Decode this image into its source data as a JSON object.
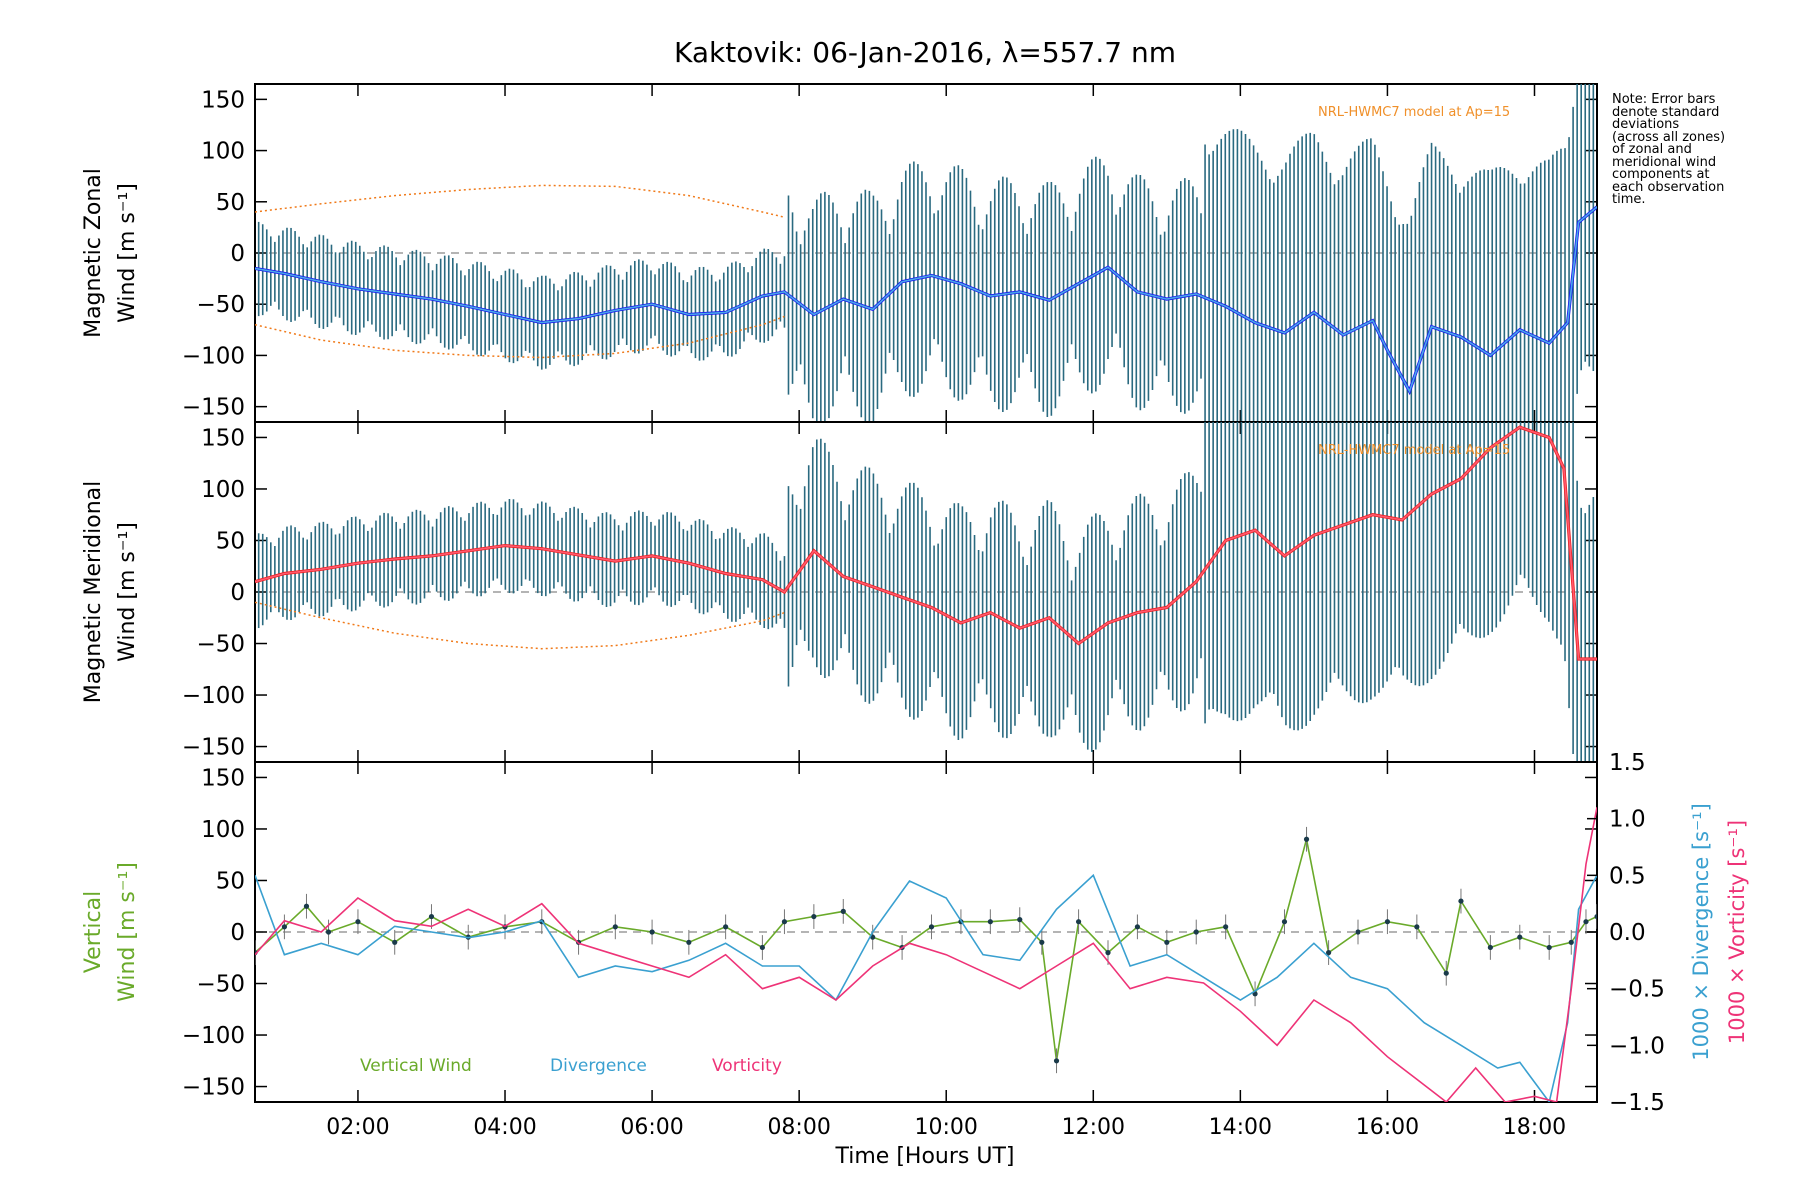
{
  "chart_data": {
    "type": "line",
    "title": "Kaktovik: 06-Jan-2016, λ=557.7 nm",
    "xlabel": "Time [Hours UT]",
    "x_ticks": [
      "02:00",
      "04:00",
      "06:00",
      "08:00",
      "10:00",
      "12:00",
      "14:00",
      "16:00",
      "18:00"
    ],
    "x_tick_hours": [
      2,
      4,
      6,
      8,
      10,
      12,
      14,
      16,
      18
    ],
    "xlim_hours": [
      0.6,
      18.85
    ],
    "note": "Note: Error bars\ndenote standard\ndeviations\n(across all zones)\nof zonal and\nmeridional wind\ncomponents at\neach observation\ntime.",
    "panels": [
      {
        "id": "zonal",
        "ylabel_line1": "Magnetic Zonal",
        "ylabel_line2": "Wind [m s⁻¹]",
        "ylim": [
          -165,
          165
        ],
        "yticks": [
          -150,
          -100,
          -50,
          0,
          50,
          100,
          150
        ],
        "model_label": "NRL-HWMC7 model at Ap=15",
        "model_upper": {
          "x": [
            0.6,
            1.5,
            2.5,
            3.5,
            4.5,
            5.5,
            6.5,
            7.5,
            7.8
          ],
          "y": [
            40,
            48,
            56,
            62,
            66,
            65,
            56,
            40,
            35
          ]
        },
        "model_lower": {
          "x": [
            0.6,
            1.5,
            2.5,
            3.5,
            4.5,
            5.5,
            6.5,
            7.5,
            7.8
          ],
          "y": [
            -70,
            -85,
            -95,
            -100,
            -102,
            -98,
            -88,
            -70,
            -62
          ]
        },
        "series": [
          {
            "color": "#1a1aee",
            "x": [
              0.6,
              1.0,
              1.5,
              2.0,
              2.5,
              3.0,
              3.5,
              4.0,
              4.5,
              5.0,
              5.5,
              6.0,
              6.5,
              7.0,
              7.5,
              7.8,
              8.2,
              8.6,
              9.0,
              9.4,
              9.8,
              10.2,
              10.6,
              11.0,
              11.4,
              11.8,
              12.2,
              12.6,
              13.0,
              13.4,
              13.8,
              14.2,
              14.6,
              15.0,
              15.4,
              15.8,
              16.0,
              16.3,
              16.6,
              17.0,
              17.4,
              17.8,
              18.2,
              18.45,
              18.6,
              18.85
            ],
            "y": [
              -15,
              -20,
              -28,
              -35,
              -40,
              -45,
              -52,
              -60,
              -68,
              -64,
              -56,
              -50,
              -60,
              -58,
              -42,
              -38,
              -60,
              -45,
              -55,
              -28,
              -22,
              -30,
              -42,
              -38,
              -46,
              -30,
              -14,
              -38,
              -45,
              -40,
              -52,
              -68,
              -78,
              -58,
              -80,
              -66,
              -95,
              -135,
              -72,
              -82,
              -100,
              -75,
              -88,
              -68,
              30,
              45
            ]
          }
        ],
        "error_bar_color": "#2a6a80"
      },
      {
        "id": "meridional",
        "ylabel_line1": "Magnetic Meridional",
        "ylabel_line2": "Wind [m s⁻¹]",
        "ylim": [
          -165,
          165
        ],
        "yticks": [
          -150,
          -100,
          -50,
          0,
          50,
          100,
          150
        ],
        "model_label": "NRL-HWMC7 model at Ap=15",
        "model_lower": {
          "x": [
            0.6,
            1.5,
            2.5,
            3.5,
            4.5,
            5.5,
            6.5,
            7.5,
            7.8
          ],
          "y": [
            -10,
            -25,
            -40,
            -50,
            -55,
            -52,
            -42,
            -28,
            -20
          ]
        },
        "series": [
          {
            "color": "#ee2222",
            "x": [
              0.6,
              1.0,
              1.5,
              2.0,
              2.5,
              3.0,
              3.5,
              4.0,
              4.5,
              5.0,
              5.5,
              6.0,
              6.5,
              7.0,
              7.5,
              7.8,
              8.2,
              8.6,
              9.0,
              9.4,
              9.8,
              10.2,
              10.6,
              11.0,
              11.4,
              11.8,
              12.2,
              12.6,
              13.0,
              13.4,
              13.8,
              14.2,
              14.6,
              15.0,
              15.4,
              15.8,
              16.2,
              16.6,
              17.0,
              17.4,
              17.8,
              18.2,
              18.4,
              18.6,
              18.85
            ],
            "y": [
              10,
              18,
              22,
              28,
              32,
              35,
              40,
              45,
              42,
              36,
              30,
              35,
              28,
              18,
              12,
              0,
              40,
              15,
              5,
              -5,
              -15,
              -30,
              -20,
              -35,
              -25,
              -50,
              -30,
              -20,
              -15,
              10,
              50,
              60,
              35,
              55,
              65,
              75,
              70,
              95,
              110,
              140,
              160,
              150,
              120,
              -65,
              -65
            ]
          }
        ],
        "error_bar_color": "#2a6a80"
      },
      {
        "id": "vertical",
        "ylabel_line1": "Vertical",
        "ylabel_line2": "Wind [m s⁻¹]",
        "ylim": [
          -165,
          165
        ],
        "yticks": [
          -150,
          -100,
          -50,
          0,
          50,
          100,
          150
        ],
        "right_axis_1_label": "1000 × Divergence [s⁻¹]",
        "right_axis_2_label": "1000 × Vorticity [s⁻¹]",
        "right_ylim": [
          -1.5,
          1.5
        ],
        "right_yticks": [
          "-1.5",
          "-1.0",
          "-0.5",
          "0.0",
          "0.5",
          "1.0",
          "1.5"
        ],
        "right_ytick_values": [
          -1.5,
          -1.0,
          -0.5,
          0.0,
          0.5,
          1.0,
          1.5
        ],
        "legend": [
          {
            "name": "Vertical Wind",
            "color": "#6aaa2a"
          },
          {
            "name": "Divergence",
            "color": "#3aa0d0"
          },
          {
            "name": "Vorticity",
            "color": "#ee3377"
          }
        ],
        "series": [
          {
            "name": "Vertical Wind",
            "color": "#6aaa2a",
            "axis": "left",
            "x": [
              0.6,
              1.0,
              1.3,
              1.6,
              2.0,
              2.5,
              3.0,
              3.5,
              4.0,
              4.5,
              5.0,
              5.5,
              6.0,
              6.5,
              7.0,
              7.5,
              7.8,
              8.2,
              8.6,
              9.0,
              9.4,
              9.8,
              10.2,
              10.6,
              11.0,
              11.3,
              11.5,
              11.8,
              12.2,
              12.6,
              13.0,
              13.4,
              13.8,
              14.2,
              14.6,
              14.9,
              15.2,
              15.6,
              16.0,
              16.4,
              16.8,
              17.0,
              17.4,
              17.8,
              18.2,
              18.5,
              18.7,
              18.85
            ],
            "y": [
              -20,
              5,
              25,
              0,
              10,
              -10,
              15,
              -5,
              5,
              10,
              -10,
              5,
              0,
              -10,
              5,
              -15,
              10,
              15,
              20,
              -5,
              -15,
              5,
              10,
              10,
              12,
              -10,
              -125,
              10,
              -20,
              5,
              -10,
              0,
              5,
              -60,
              10,
              90,
              -20,
              0,
              10,
              5,
              -40,
              30,
              -15,
              -5,
              -15,
              -10,
              10,
              15
            ]
          },
          {
            "name": "Divergence",
            "color": "#3aa0d0",
            "axis": "right",
            "x": [
              0.6,
              1.0,
              1.5,
              2.0,
              2.5,
              3.0,
              3.5,
              4.0,
              4.5,
              5.0,
              5.5,
              6.0,
              6.5,
              7.0,
              7.5,
              8.0,
              8.5,
              9.0,
              9.5,
              10.0,
              10.5,
              11.0,
              11.5,
              12.0,
              12.5,
              13.0,
              13.5,
              14.0,
              14.5,
              15.0,
              15.5,
              16.0,
              16.5,
              17.0,
              17.5,
              17.8,
              18.2,
              18.45,
              18.6,
              18.85
            ],
            "y": [
              0.5,
              -0.2,
              -0.1,
              -0.2,
              0.05,
              0.0,
              -0.05,
              0.0,
              0.1,
              -0.4,
              -0.3,
              -0.35,
              -0.25,
              -0.1,
              -0.3,
              -0.3,
              -0.6,
              0.0,
              0.45,
              0.3,
              -0.2,
              -0.25,
              0.2,
              0.5,
              -0.3,
              -0.2,
              -0.4,
              -0.6,
              -0.4,
              -0.1,
              -0.4,
              -0.5,
              -0.8,
              -1.0,
              -1.2,
              -1.15,
              -1.5,
              -0.8,
              0.2,
              0.5
            ]
          },
          {
            "name": "Vorticity",
            "color": "#ee3377",
            "axis": "right",
            "x": [
              0.6,
              1.0,
              1.5,
              2.0,
              2.5,
              3.0,
              3.5,
              4.0,
              4.5,
              5.0,
              5.5,
              6.0,
              6.5,
              7.0,
              7.5,
              8.0,
              8.5,
              9.0,
              9.5,
              10.0,
              10.5,
              11.0,
              11.5,
              12.0,
              12.5,
              13.0,
              13.5,
              14.0,
              14.5,
              15.0,
              15.5,
              16.0,
              16.4,
              16.8,
              17.2,
              17.6,
              18.0,
              18.3,
              18.5,
              18.7,
              18.85
            ],
            "y": [
              -0.2,
              0.1,
              0.0,
              0.3,
              0.1,
              0.05,
              0.2,
              0.05,
              0.25,
              -0.1,
              -0.2,
              -0.3,
              -0.4,
              -0.2,
              -0.5,
              -0.4,
              -0.6,
              -0.3,
              -0.1,
              -0.2,
              -0.35,
              -0.5,
              -0.3,
              -0.1,
              -0.5,
              -0.4,
              -0.45,
              -0.7,
              -1.0,
              -0.6,
              -0.8,
              -1.1,
              -1.3,
              -1.5,
              -1.2,
              -1.5,
              -1.45,
              -1.5,
              -0.5,
              0.6,
              1.1
            ]
          }
        ]
      }
    ]
  }
}
